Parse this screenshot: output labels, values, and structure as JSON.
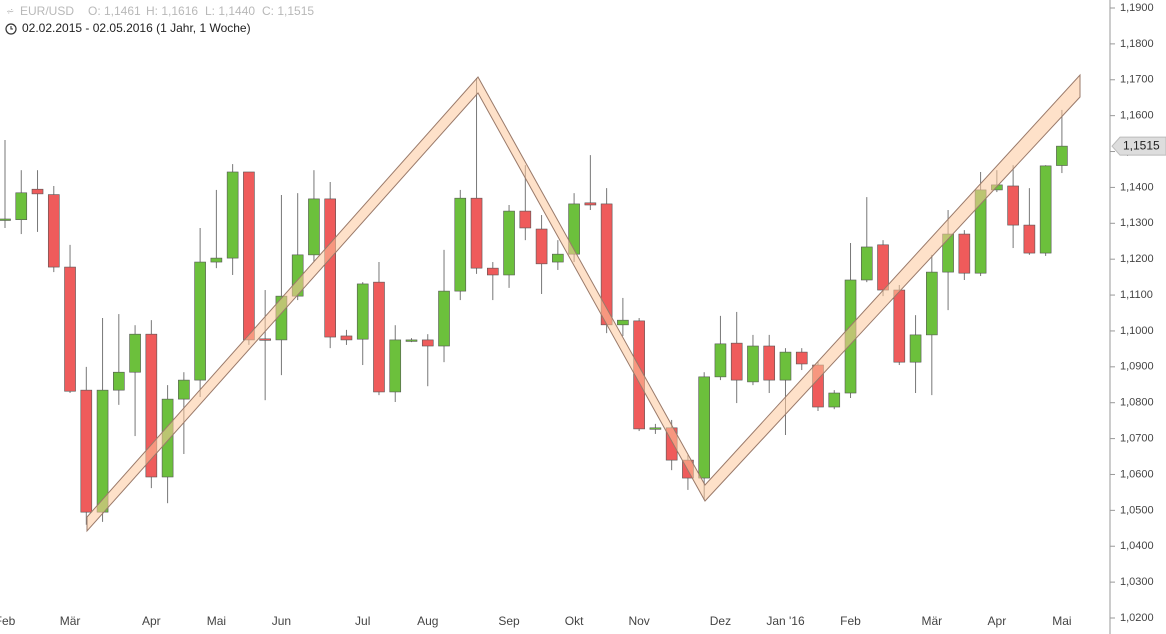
{
  "header": {
    "symbol": "EUR/USD",
    "open": "O: 1,1461",
    "high": "H: 1,1616",
    "low": "L: 1,1440",
    "close": "C: 1,1515",
    "period": "02.02.2015 - 02.05.2016 (1 Jahr, 1 Woche)"
  },
  "chart_data": {
    "type": "candlestick",
    "categories": [
      "Feb",
      null,
      null,
      null,
      "Mär",
      null,
      null,
      null,
      null,
      "Apr",
      null,
      null,
      null,
      "Mai",
      null,
      null,
      null,
      "Jun",
      null,
      null,
      null,
      null,
      "Jul",
      null,
      null,
      null,
      "Aug",
      null,
      null,
      null,
      null,
      "Sep",
      null,
      null,
      null,
      "Okt",
      null,
      null,
      null,
      "Nov",
      null,
      null,
      null,
      null,
      "Dez",
      null,
      null,
      null,
      "Jan '16",
      null,
      null,
      null,
      "Feb",
      null,
      null,
      null,
      null,
      "Mär",
      null,
      null,
      null,
      "Apr",
      null,
      null,
      null,
      "Mai"
    ],
    "open": [
      1.131,
      1.131,
      1.1395,
      1.138,
      1.1178,
      1.0835,
      1.0495,
      1.0835,
      1.0885,
      1.0991,
      1.0593,
      1.081,
      1.0863,
      1.1192,
      1.1203,
      1.1443,
      1.0978,
      1.0975,
      1.1097,
      1.1212,
      1.1368,
      1.0986,
      1.0977,
      1.1136,
      1.083,
      1.0974,
      1.0975,
      1.0958,
      1.1111,
      1.137,
      1.1175,
      1.1156,
      1.1334,
      1.1284,
      1.1192,
      1.1214,
      1.1357,
      1.1354,
      1.1017,
      1.1028,
      1.0727,
      1.073,
      1.064,
      1.059,
      1.0872,
      1.0966,
      1.0858,
      1.0958,
      1.0863,
      1.0941,
      1.0905,
      1.0788,
      1.0827,
      1.1142,
      1.124,
      1.1114,
      1.0913,
      1.0989,
      1.1164,
      1.127,
      1.1161,
      1.1393,
      1.1404,
      1.1295,
      1.1217,
      1.1461
    ],
    "high": [
      1.1532,
      1.1448,
      1.1448,
      1.1404,
      1.124,
      1.09,
      1.1036,
      1.1047,
      1.1016,
      1.103,
      1.0849,
      1.0885,
      1.1287,
      1.1393,
      1.1465,
      1.1443,
      1.1114,
      1.1379,
      1.1384,
      1.1448,
      1.1415,
      1.1003,
      1.1136,
      1.1192,
      1.1016,
      1.098,
      1.0991,
      1.1226,
      1.1393,
      1.1705,
      1.1192,
      1.1351,
      1.1462,
      1.1323,
      1.1253,
      1.1384,
      1.149,
      1.1398,
      1.1092,
      1.1036,
      1.0741,
      1.0752,
      1.0654,
      1.0885,
      1.1042,
      1.1053,
      1.0989,
      1.0989,
      1.0952,
      1.0952,
      1.0913,
      1.0835,
      1.1245,
      1.1373,
      1.1253,
      1.1128,
      1.1044,
      1.1212,
      1.1337,
      1.1281,
      1.1443,
      1.1448,
      1.1462,
      1.1398,
      1.1462,
      1.1616
    ],
    "low": [
      1.1287,
      1.127,
      1.1276,
      1.1164,
      1.0827,
      1.046,
      1.0468,
      1.0794,
      1.0707,
      1.0562,
      1.052,
      1.0657,
      1.0816,
      1.1175,
      1.1156,
      1.0961,
      1.0807,
      1.0877,
      1.1086,
      1.1192,
      1.0952,
      1.0961,
      1.0905,
      1.0821,
      1.0802,
      1.0969,
      1.0846,
      1.0913,
      1.1086,
      1.1159,
      1.1086,
      1.112,
      1.1253,
      1.1103,
      1.117,
      1.1192,
      1.1337,
      1.0994,
      1.0986,
      1.0721,
      1.0713,
      1.0612,
      1.0557,
      1.0529,
      1.0863,
      1.0799,
      1.0849,
      1.0827,
      1.071,
      1.0891,
      1.0777,
      1.0782,
      1.0813,
      1.1136,
      1.1097,
      1.0905,
      1.0827,
      1.0821,
      1.1058,
      1.1142,
      1.1153,
      1.1387,
      1.1231,
      1.1212,
      1.1209,
      1.144
    ],
    "close": [
      1.1312,
      1.1385,
      1.1382,
      1.1178,
      1.0832,
      1.0495,
      1.0835,
      1.0885,
      1.0991,
      1.0593,
      1.081,
      1.0863,
      1.1192,
      1.1203,
      1.1443,
      1.0975,
      1.0975,
      1.1097,
      1.1212,
      1.1368,
      1.0983,
      1.0975,
      1.1131,
      1.083,
      1.0975,
      1.0975,
      1.0958,
      1.1111,
      1.137,
      1.1175,
      1.1156,
      1.1334,
      1.1287,
      1.1187,
      1.1214,
      1.1354,
      1.1351,
      1.1017,
      1.103,
      1.0727,
      1.073,
      1.064,
      1.059,
      1.0872,
      1.0964,
      1.0863,
      1.0958,
      1.0863,
      1.0941,
      1.0908,
      1.0788,
      1.0827,
      1.1142,
      1.1234,
      1.1114,
      1.0913,
      1.0989,
      1.1164,
      1.127,
      1.1161,
      1.1393,
      1.1407,
      1.1295,
      1.1217,
      1.146,
      1.1515
    ],
    "up_color": "#6cc03c",
    "down_color": "#ef5b5b",
    "current": {
      "value": 1.1515,
      "label": "1,1515"
    },
    "ylim": [
      1.02,
      1.19
    ],
    "yticks": [
      {
        "value": 1.02,
        "label": "1,0200"
      },
      {
        "value": 1.03,
        "label": "1,0300"
      },
      {
        "value": 1.04,
        "label": "1,0400"
      },
      {
        "value": 1.05,
        "label": "1,0500"
      },
      {
        "value": 1.06,
        "label": "1,0600"
      },
      {
        "value": 1.07,
        "label": "1,0700"
      },
      {
        "value": 1.08,
        "label": "1,0800"
      },
      {
        "value": 1.09,
        "label": "1,0900"
      },
      {
        "value": 1.1,
        "label": "1,1000"
      },
      {
        "value": 1.11,
        "label": "1,1100"
      },
      {
        "value": 1.12,
        "label": "1,1200"
      },
      {
        "value": 1.13,
        "label": "1,1300"
      },
      {
        "value": 1.14,
        "label": "1,1400"
      },
      {
        "value": 1.15,
        "label": "1,1500"
      },
      {
        "value": 1.16,
        "label": "1,1600"
      },
      {
        "value": 1.17,
        "label": "1,1700"
      },
      {
        "value": 1.18,
        "label": "1,1800"
      },
      {
        "value": 1.19,
        "label": "1,1900"
      }
    ]
  }
}
